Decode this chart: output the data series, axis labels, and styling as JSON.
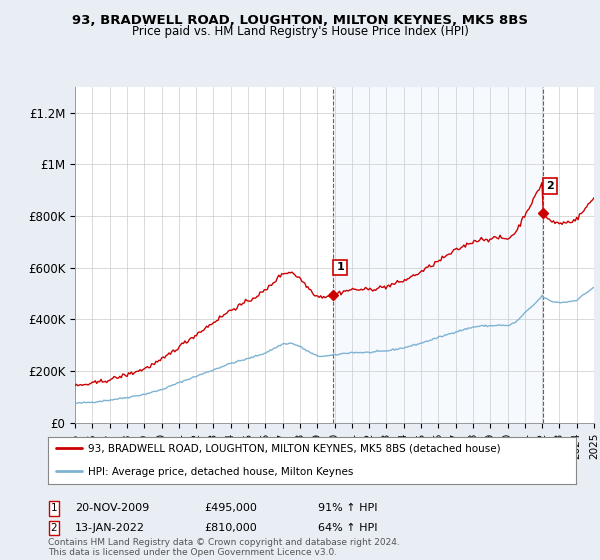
{
  "title": "93, BRADWELL ROAD, LOUGHTON, MILTON KEYNES, MK5 8BS",
  "subtitle": "Price paid vs. HM Land Registry's House Price Index (HPI)",
  "hpi_label": "HPI: Average price, detached house, Milton Keynes",
  "property_label": "93, BRADWELL ROAD, LOUGHTON, MILTON KEYNES, MK5 8BS (detached house)",
  "annotation1": [
    "1",
    "20-NOV-2009",
    "£495,000",
    "91% ↑ HPI"
  ],
  "annotation2": [
    "2",
    "13-JAN-2022",
    "£810,000",
    "64% ↑ HPI"
  ],
  "footnote": "Contains HM Land Registry data © Crown copyright and database right 2024.\nThis data is licensed under the Open Government Licence v3.0.",
  "property_color": "#cc0000",
  "hpi_color": "#7fb3d3",
  "shade_color": "#ddeeff",
  "vline_color": "#cc0000",
  "background_color": "#e8eef4",
  "plot_bg": "#ffffff",
  "ylim": [
    0,
    1300000
  ],
  "yticks": [
    0,
    200000,
    400000,
    600000,
    800000,
    1000000,
    1200000
  ],
  "ytick_labels": [
    "£0",
    "£200K",
    "£400K",
    "£600K",
    "£800K",
    "£1M",
    "£1.2M"
  ],
  "sale1_x": 2009.9,
  "sale1_y": 495000,
  "sale2_x": 2022.04,
  "sale2_y": 810000,
  "xmin": 1995,
  "xmax": 2025
}
